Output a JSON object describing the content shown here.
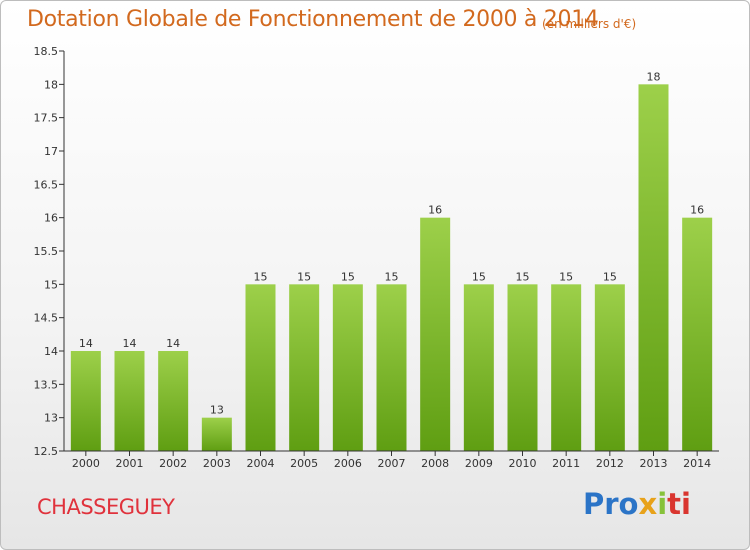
{
  "header": {
    "title": "Dotation Globale de Fonctionnement de 2000 à 2014",
    "subtitle": "(en milliers d'€)"
  },
  "footer": {
    "commune": "CHASSEGUEY",
    "logo": {
      "p1": "Pro",
      "p2": "x",
      "p3": "i",
      "p4": "ti"
    }
  },
  "colors": {
    "bar_top": "#9dd04a",
    "bar_bottom": "#5f9e12",
    "title": "#d2691e",
    "commune": "#e0323c"
  },
  "chart_data": {
    "type": "bar",
    "title": "Dotation Globale de Fonctionnement de 2000 à 2014",
    "subtitle": "(en milliers d'€)",
    "categories": [
      "2000",
      "2001",
      "2002",
      "2003",
      "2004",
      "2005",
      "2006",
      "2007",
      "2008",
      "2009",
      "2010",
      "2011",
      "2012",
      "2013",
      "2014"
    ],
    "values": [
      14,
      14,
      14,
      13,
      15,
      15,
      15,
      15,
      16,
      15,
      15,
      15,
      15,
      18,
      16
    ],
    "labels": [
      "14",
      "14",
      "14",
      "13",
      "15",
      "15",
      "15",
      "15",
      "16",
      "15",
      "15",
      "15",
      "15",
      "18",
      "16"
    ],
    "ylim": [
      12.5,
      18.5
    ],
    "yticks": [
      12.5,
      13,
      13.5,
      14,
      14.5,
      15,
      15.5,
      16,
      16.5,
      17,
      17.5,
      18,
      18.5
    ],
    "ytick_labels": [
      "12.5",
      "13",
      "13.5",
      "14",
      "14.5",
      "15",
      "15.5",
      "16",
      "16.5",
      "17",
      "17.5",
      "18",
      "18.5"
    ],
    "grid": false,
    "xlabel": "",
    "ylabel": ""
  }
}
